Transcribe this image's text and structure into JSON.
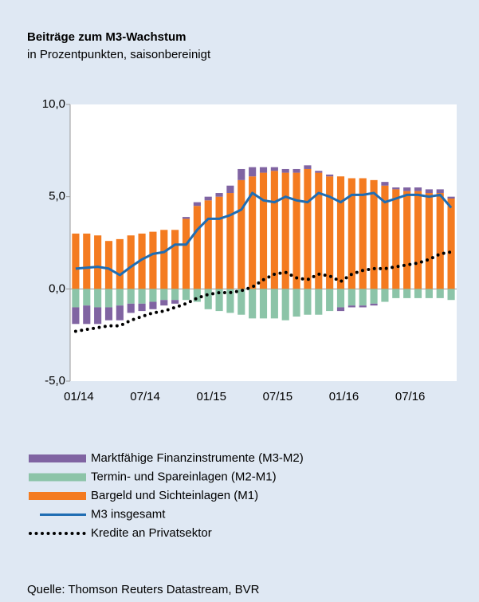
{
  "chart_data": {
    "type": "bar",
    "title": "Beiträge zum M3-Wachstum",
    "subtitle": "in Prozentpunkten, saisonbereinigt",
    "source": "Quelle: Thomson Reuters Datastream, BVR",
    "categories": [
      "01/14",
      null,
      null,
      null,
      null,
      null,
      "07/14",
      null,
      null,
      null,
      null,
      null,
      "01/15",
      null,
      null,
      null,
      null,
      null,
      "07/15",
      null,
      null,
      null,
      null,
      null,
      "01/16",
      null,
      null,
      null,
      null,
      null,
      "07/16",
      null,
      null,
      null,
      null
    ],
    "ylim": [
      -5,
      10
    ],
    "yticks": [
      {
        "value": -5,
        "label": "-5,0"
      },
      {
        "value": 0,
        "label": "0,0"
      },
      {
        "value": 5,
        "label": "5,0"
      },
      {
        "value": 10,
        "label": "10,0"
      }
    ],
    "stacked": true,
    "series": [
      {
        "name": "Marktfähige Finanzinstrumente (M3-M2)",
        "kind": "bar",
        "color": "#8064a2",
        "values": [
          -0.9,
          -1.0,
          -0.9,
          -0.7,
          -0.8,
          -0.5,
          -0.4,
          -0.4,
          -0.3,
          -0.2,
          0.1,
          0.2,
          0.2,
          0.2,
          0.4,
          0.6,
          0.5,
          0.3,
          0.2,
          0.2,
          0.2,
          0.2,
          0.1,
          0.1,
          -0.2,
          -0.1,
          -0.1,
          -0.1,
          0.2,
          0.1,
          0.2,
          0.2,
          0.2,
          0.2,
          0.1
        ]
      },
      {
        "name": "Termin- und Spareinlagen (M2-M1)",
        "kind": "bar",
        "color": "#8cc4a8",
        "values": [
          -1.0,
          -0.9,
          -1.0,
          -1.0,
          -0.9,
          -0.8,
          -0.8,
          -0.7,
          -0.6,
          -0.6,
          -0.6,
          -0.7,
          -1.1,
          -1.2,
          -1.3,
          -1.4,
          -1.6,
          -1.6,
          -1.6,
          -1.7,
          -1.5,
          -1.4,
          -1.4,
          -1.2,
          -1.0,
          -0.9,
          -0.9,
          -0.8,
          -0.7,
          -0.5,
          -0.5,
          -0.5,
          -0.5,
          -0.5,
          -0.6
        ]
      },
      {
        "name": "Bargeld und Sichteinlagen (M1)",
        "kind": "bar",
        "color": "#f47b20",
        "values": [
          3.0,
          3.0,
          2.9,
          2.6,
          2.7,
          2.9,
          3.0,
          3.1,
          3.2,
          3.2,
          3.8,
          4.5,
          4.8,
          5.0,
          5.2,
          5.9,
          6.1,
          6.3,
          6.4,
          6.3,
          6.3,
          6.5,
          6.3,
          6.1,
          6.1,
          6.0,
          6.0,
          5.9,
          5.6,
          5.4,
          5.3,
          5.3,
          5.2,
          5.2,
          4.9
        ]
      },
      {
        "name": "M3 insgesamt",
        "kind": "line",
        "color": "#1f6db3",
        "values": [
          1.1,
          1.15,
          1.2,
          1.1,
          0.75,
          1.2,
          1.6,
          1.9,
          2.0,
          2.4,
          2.4,
          3.2,
          3.8,
          3.8,
          4.0,
          4.3,
          5.2,
          4.8,
          4.7,
          5.0,
          4.8,
          4.7,
          5.2,
          5.0,
          4.7,
          5.1,
          5.1,
          5.2,
          4.7,
          4.9,
          5.1,
          5.1,
          5.0,
          5.1,
          4.4
        ]
      },
      {
        "name": "Kredite an Privatsektor",
        "kind": "line",
        "style": "dotted",
        "color": "#000000",
        "values": [
          -2.3,
          -2.2,
          -2.1,
          -2.0,
          -2.0,
          -1.7,
          -1.5,
          -1.3,
          -1.2,
          -1.0,
          -0.8,
          -0.5,
          -0.3,
          -0.2,
          -0.2,
          -0.1,
          0.1,
          0.5,
          0.8,
          0.9,
          0.6,
          0.5,
          0.8,
          0.7,
          0.4,
          0.8,
          1.0,
          1.1,
          1.1,
          1.2,
          1.3,
          1.4,
          1.6,
          1.9,
          2.0
        ]
      }
    ]
  }
}
